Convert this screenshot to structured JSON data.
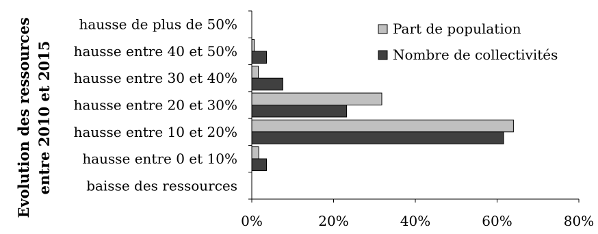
{
  "chart_data": {
    "type": "bar",
    "orientation": "horizontal",
    "title": "",
    "ylabel": "Evolution des ressources entre 2010 et 2015",
    "ylabel_lines": [
      "Evolution des ressources",
      "entre 2010 et 2015"
    ],
    "xlabel": "",
    "categories": [
      "hausse de plus de 50%",
      "hausse entre 40 et 50%",
      "hausse entre 30 et 40%",
      "hausse entre 20 et 30%",
      "hausse entre 10 et 20%",
      "hausse entre 0 et 10%",
      "baisse des ressources"
    ],
    "series": [
      {
        "name": "Part de population",
        "color": "#c0c0c0",
        "values": [
          0,
          0.6,
          1.6,
          31.8,
          64.0,
          1.7,
          0
        ]
      },
      {
        "name": "Nombre de collectivités",
        "color": "#404040",
        "values": [
          0,
          3.6,
          7.6,
          23.2,
          61.6,
          3.6,
          0
        ]
      }
    ],
    "xlim": [
      0,
      80
    ],
    "xticks": [
      0,
      20,
      40,
      60,
      80
    ],
    "xtick_labels": [
      "0%",
      "20%",
      "40%",
      "60%",
      "80%"
    ],
    "grid": false,
    "legend_position": "top-right"
  }
}
